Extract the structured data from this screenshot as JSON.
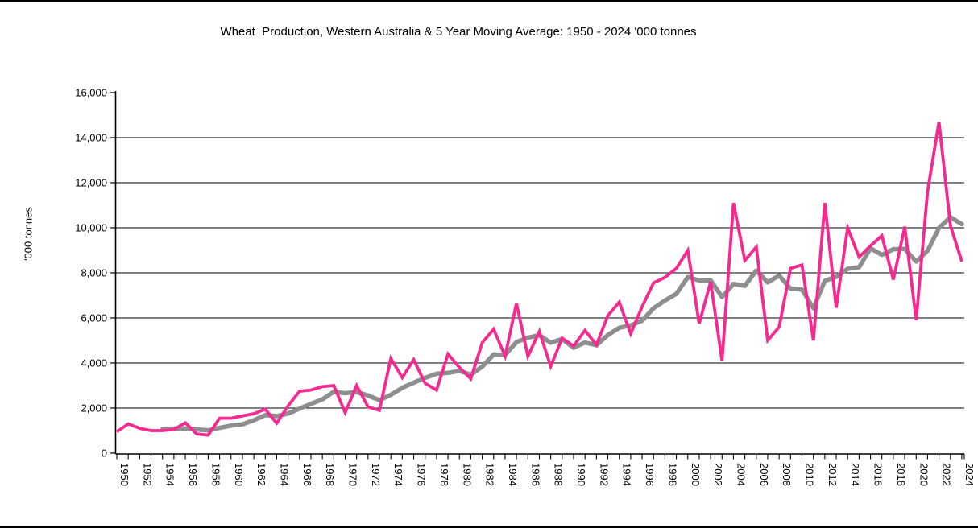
{
  "chart": {
    "title": "Wheat  Production, Western Australia & 5 Year Moving Average: 1950 - 2024 '000 tonnes"
  },
  "chart_data": {
    "type": "line",
    "title": "Wheat  Production, Western Australia & 5 Year Moving Average: 1950 - 2024 '000 tonnes",
    "xlabel": "",
    "ylabel": "'000 tonnes",
    "ylim": [
      0,
      16000
    ],
    "y_tick_interval": 2000,
    "y_tick_labels": [
      "0",
      "2,000",
      "4,000",
      "6,000",
      "8,000",
      "10,000",
      "12,000",
      "14,000",
      "16,000"
    ],
    "x_range": [
      1950,
      2024
    ],
    "x_tick_label_years": [
      1950,
      1952,
      1954,
      1956,
      1958,
      1960,
      1962,
      1964,
      1966,
      1968,
      1970,
      1972,
      1974,
      1976,
      1978,
      1980,
      1982,
      1984,
      1986,
      1988,
      1990,
      1992,
      1994,
      1996,
      1998,
      2000,
      2002,
      2004,
      2006,
      2008,
      2010,
      2012,
      2014,
      2016,
      2018,
      2020,
      2022,
      2024
    ],
    "grid": "horizontal-only, no gridline at 16000",
    "legend": "none",
    "series": [
      {
        "name": "Wheat Production",
        "color": "#F42A90",
        "stroke_width": 3.8,
        "start_year": 1950,
        "values": [
          950,
          1300,
          1100,
          1000,
          1000,
          1050,
          1350,
          850,
          800,
          1550,
          1550,
          1650,
          1750,
          1950,
          1330,
          2100,
          2750,
          2800,
          2950,
          3000,
          1800,
          3000,
          2050,
          1900,
          4200,
          3350,
          4150,
          3100,
          2800,
          4400,
          3800,
          3300,
          4900,
          5500,
          4300,
          6650,
          4300,
          5400,
          3850,
          5100,
          4750,
          5450,
          4800,
          6100,
          6700,
          5300,
          6500,
          7550,
          7800,
          8200,
          9000,
          5750,
          7600,
          4100,
          11100,
          8550,
          9150,
          5000,
          5600,
          8200,
          8350,
          5000,
          11100,
          6450,
          10000,
          8700,
          9200,
          9650,
          7700,
          10050,
          5900,
          11600,
          14700,
          10100,
          8500
        ]
      },
      {
        "name": "5 Year Moving Average",
        "color": "#8E8E8E",
        "stroke_width": 5.5,
        "start_year": 1954,
        "derivation": "trailing 5-year mean of Wheat Production",
        "values": [
          1070,
          1090,
          1100,
          1050,
          1010,
          1120,
          1220,
          1280,
          1460,
          1690,
          1646,
          1756,
          1976,
          2186,
          2386,
          2720,
          2660,
          2710,
          2560,
          2350,
          2590,
          2900,
          3130,
          3340,
          3520,
          3560,
          3650,
          3480,
          3840,
          4380,
          4360,
          4930,
          5130,
          5230,
          4900,
          5060,
          4680,
          4910,
          4790,
          5240,
          5560,
          5670,
          5880,
          6430,
          6770,
          7070,
          7810,
          7660,
          7670,
          6930,
          7510,
          7420,
          8100,
          7580,
          7880,
          7300,
          7260,
          6430,
          7650,
          7820,
          8180,
          8250,
          9090,
          8800,
          9050,
          9060,
          8500,
          8980,
          9990,
          10470,
          10160
        ]
      }
    ]
  }
}
